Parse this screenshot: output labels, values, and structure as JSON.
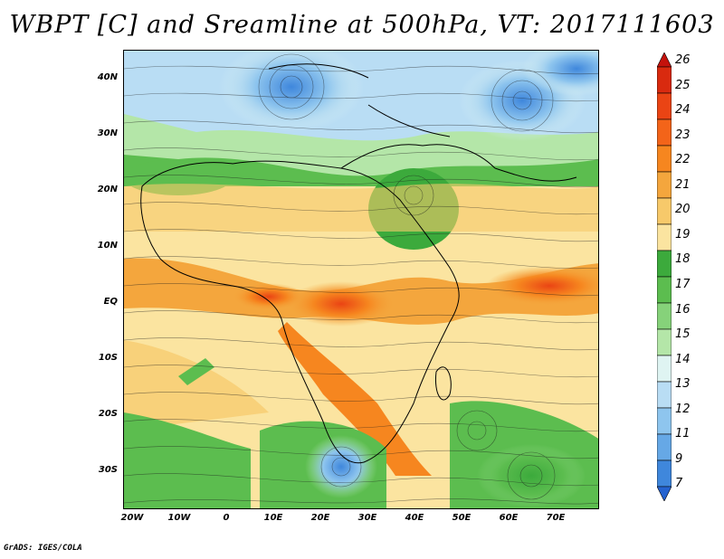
{
  "title": "WBPT [C] and Sreamline at 500hPa, VT: 2017111603",
  "credit": "GrADS: IGES/COLA",
  "y_axis_labels": [
    "40N",
    "30N",
    "20N",
    "10N",
    "EQ",
    "10S",
    "20S",
    "30S"
  ],
  "x_axis_labels": [
    "20W",
    "10W",
    "0",
    "10E",
    "20E",
    "30E",
    "40E",
    "50E",
    "60E",
    "70E"
  ],
  "colorbar": {
    "labels": [
      "26",
      "25",
      "24",
      "23",
      "22",
      "21",
      "20",
      "19",
      "18",
      "17",
      "16",
      "15",
      "14",
      "13",
      "12",
      "11",
      "9",
      "7"
    ],
    "colors": [
      "#c4120c",
      "#d92a0f",
      "#ea4414",
      "#f36419",
      "#f6861f",
      "#f4a63d",
      "#f7c96a",
      "#fbe4a0",
      "#3caa3c",
      "#5cbd4f",
      "#86d27a",
      "#b4e6a8",
      "#dff4f2",
      "#b9ddf4",
      "#8ec5ee",
      "#66a8e6",
      "#3f87dc",
      "#2563d0"
    ]
  }
}
